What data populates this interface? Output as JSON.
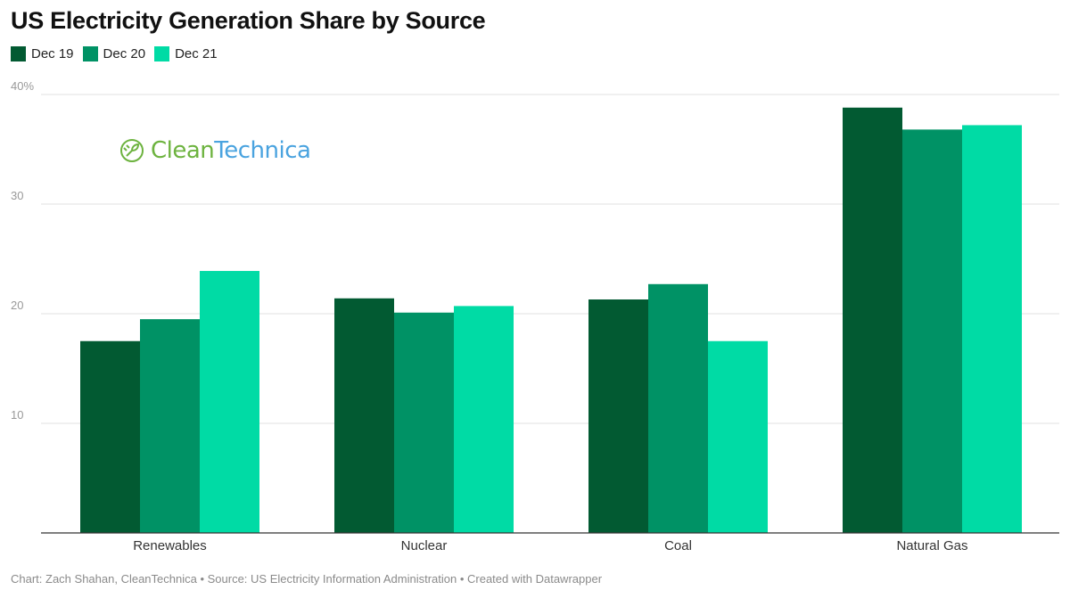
{
  "header": {
    "title": "US Electricity Generation Share by Source"
  },
  "footer": {
    "text": "Chart: Zach Shahan, CleanTechnica • Source: US Electricity Information Administration • Created with Datawrapper"
  },
  "logo": {
    "clean": "Clean",
    "technica": "Technica",
    "icon": "plug-leaf-icon"
  },
  "chart_data": {
    "type": "bar",
    "title": "US Electricity Generation Share by Source",
    "categories": [
      "Renewables",
      "Nuclear",
      "Coal",
      "Natural Gas"
    ],
    "series": [
      {
        "name": "Dec 19",
        "color": "#025a32",
        "values": [
          17.5,
          21.4,
          21.3,
          38.8
        ]
      },
      {
        "name": "Dec 20",
        "color": "#009265",
        "values": [
          19.5,
          20.1,
          22.7,
          36.8
        ]
      },
      {
        "name": "Dec 21",
        "color": "#00dba5",
        "values": [
          23.9,
          20.7,
          17.5,
          37.2
        ]
      }
    ],
    "yticks": [
      10,
      20,
      30,
      40
    ],
    "ytick_labels": [
      "10",
      "20",
      "30",
      "40%"
    ],
    "ylim": [
      0,
      40
    ],
    "xlabel": "",
    "ylabel": "",
    "grid": true,
    "legend_position": "top-left"
  }
}
